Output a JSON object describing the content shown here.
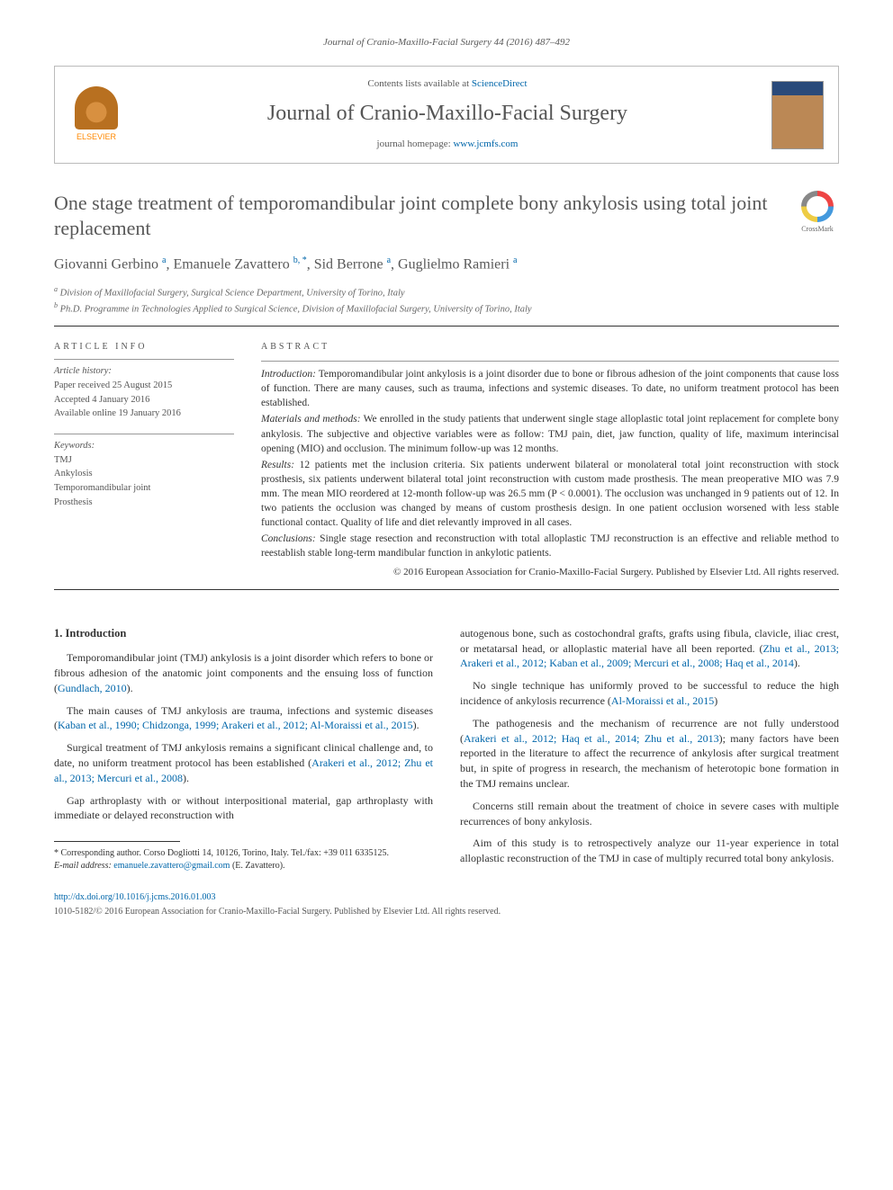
{
  "journal_ref": {
    "text": "Journal of Cranio-Maxillo-Facial Surgery 44 (2016) 487–492",
    "link_color": "#0066aa"
  },
  "header": {
    "contents_text": "Contents lists available at ",
    "contents_link": "ScienceDirect",
    "journal_name": "Journal of Cranio-Maxillo-Facial Surgery",
    "homepage_label": "journal homepage: ",
    "homepage_url": "www.jcmfs.com",
    "publisher_logo_text": "ELSEVIER"
  },
  "article": {
    "title": "One stage treatment of temporomandibular joint complete bony ankylosis using total joint replacement",
    "crossmark_label": "CrossMark"
  },
  "authors": {
    "a1_name": "Giovanni Gerbino",
    "a1_sup": "a",
    "a2_name": "Emanuele Zavattero",
    "a2_sup": "b, *",
    "a3_name": "Sid Berrone",
    "a3_sup": "a",
    "a4_name": "Guglielmo Ramieri",
    "a4_sup": "a"
  },
  "affiliations": {
    "a": "Division of Maxillofacial Surgery, Surgical Science Department, University of Torino, Italy",
    "b": "Ph.D. Programme in Technologies Applied to Surgical Science, Division of Maxillofacial Surgery, University of Torino, Italy"
  },
  "article_info": {
    "heading": "ARTICLE INFO",
    "history_label": "Article history:",
    "received": "Paper received 25 August 2015",
    "accepted": "Accepted 4 January 2016",
    "online": "Available online 19 January 2016",
    "keywords_label": "Keywords:",
    "kw1": "TMJ",
    "kw2": "Ankylosis",
    "kw3": "Temporomandibular joint",
    "kw4": "Prosthesis"
  },
  "abstract": {
    "heading": "ABSTRACT",
    "intro_label": "Introduction:",
    "intro": "Temporomandibular joint ankylosis is a joint disorder due to bone or fibrous adhesion of the joint components that cause loss of function. There are many causes, such as trauma, infections and systemic diseases. To date, no uniform treatment protocol has been established.",
    "methods_label": "Materials and methods:",
    "methods": "We enrolled in the study patients that underwent single stage alloplastic total joint replacement for complete bony ankylosis. The subjective and objective variables were as follow: TMJ pain, diet, jaw function, quality of life, maximum interincisal opening (MIO) and occlusion. The minimum follow-up was 12 months.",
    "results_label": "Results:",
    "results": "12 patients met the inclusion criteria. Six patients underwent bilateral or monolateral total joint reconstruction with stock prosthesis, six patients underwent bilateral total joint reconstruction with custom made prosthesis. The mean preoperative MIO was 7.9 mm. The mean MIO reordered at 12-month follow-up was 26.5 mm (P < 0.0001). The occlusion was unchanged in 9 patients out of 12. In two patients the occlusion was changed by means of custom prosthesis design. In one patient occlusion worsened with less stable functional contact. Quality of life and diet relevantly improved in all cases.",
    "conclusions_label": "Conclusions:",
    "conclusions": "Single stage resection and reconstruction with total alloplastic TMJ reconstruction is an effective and reliable method to reestablish stable long-term mandibular function in ankylotic patients.",
    "copyright": "© 2016 European Association for Cranio-Maxillo-Facial Surgery. Published by Elsevier Ltd. All rights reserved."
  },
  "body": {
    "section_heading": "1. Introduction",
    "p1a": "Temporomandibular joint (TMJ) ankylosis is a joint disorder which refers to bone or fibrous adhesion of the anatomic joint components and the ensuing loss of function (",
    "p1_cite": "Gundlach, 2010",
    "p1b": ").",
    "p2a": "The main causes of TMJ ankylosis are trauma, infections and systemic diseases (",
    "p2_cite": "Kaban et al., 1990; Chidzonga, 1999; Arakeri et al., 2012; Al-Moraissi et al., 2015",
    "p2b": ").",
    "p3a": "Surgical treatment of TMJ ankylosis remains a significant clinical challenge and, to date, no uniform treatment protocol has been established (",
    "p3_cite": "Arakeri et al., 2012; Zhu et al., 2013; Mercuri et al., 2008",
    "p3b": ").",
    "p4": "Gap arthroplasty with or without interpositional material, gap arthroplasty with immediate or delayed reconstruction with",
    "p5a": "autogenous bone, such as costochondral grafts, grafts using fibula, clavicle, iliac crest, or metatarsal head, or alloplastic material have all been reported. (",
    "p5_cite": "Zhu et al., 2013; Arakeri et al., 2012; Kaban et al., 2009; Mercuri et al., 2008; Haq et al., 2014",
    "p5b": ").",
    "p6a": "No single technique has uniformly proved to be successful to reduce the high incidence of ankylosis recurrence (",
    "p6_cite": "Al-Moraissi et al., 2015",
    "p6b": ")",
    "p7a": "The pathogenesis and the mechanism of recurrence are not fully understood (",
    "p7_cite": "Arakeri et al., 2012; Haq et al., 2014; Zhu et al., 2013",
    "p7b": "); many factors have been reported in the literature to affect the recurrence of ankylosis after surgical treatment but, in spite of progress in research, the mechanism of heterotopic bone formation in the TMJ remains unclear.",
    "p8": "Concerns still remain about the treatment of choice in severe cases with multiple recurrences of bony ankylosis.",
    "p9": "Aim of this study is to retrospectively analyze our 11-year experience in total alloplastic reconstruction of the TMJ in case of multiply recurred total bony ankylosis."
  },
  "footnote": {
    "corresponding": "* Corresponding author. Corso Dogliotti 14, 10126, Torino, Italy. Tel./fax: +39 011 6335125.",
    "email_label": "E-mail address:",
    "email": "emanuele.zavattero@gmail.com",
    "email_who": "(E. Zavattero)."
  },
  "doi": {
    "url": "http://dx.doi.org/10.1016/j.jcms.2016.01.003",
    "issn_line": "1010-5182/© 2016 European Association for Cranio-Maxillo-Facial Surgery. Published by Elsevier Ltd. All rights reserved."
  },
  "colors": {
    "link": "#0066aa",
    "text": "#333333",
    "heading_gray": "#585858",
    "rule": "#333333"
  }
}
